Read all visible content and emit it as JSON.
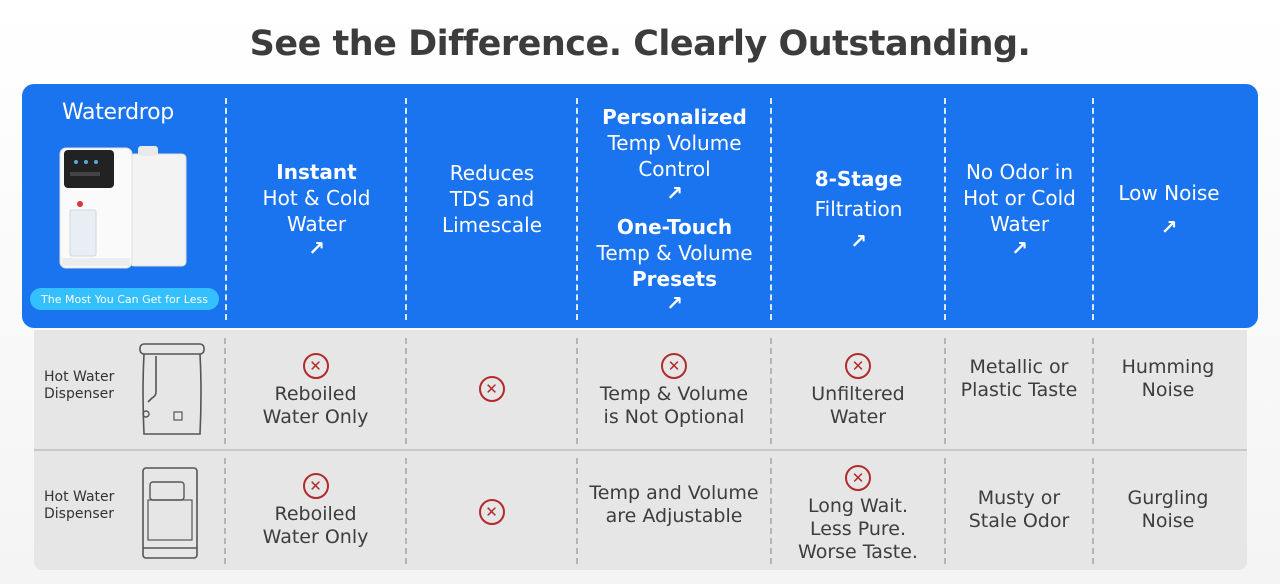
{
  "title": "See the Difference. Clearly Outstanding.",
  "brand": {
    "logo": "Waterdrop",
    "pill": "The Most You Can Get for Less",
    "accent_color": "#1a74f0",
    "pill_color": "#34c0ff",
    "x_color": "#b22b2b"
  },
  "features": [
    {
      "line1_bold": "Instant",
      "line2": "Hot & Cold",
      "line3": "Water"
    },
    {
      "line1": "Reduces",
      "line2": "TDS and",
      "line3": "Limescale"
    },
    {
      "a_bold": "Personalized",
      "a_rest1": "Temp Volume",
      "a_rest2": "Control",
      "b_bold": "One-Touch",
      "b_mid": "Temp & Volume",
      "b_bold2": "Presets"
    },
    {
      "line1_bold": "8-Stage",
      "line2": "Filtration"
    },
    {
      "line1": "No Odor in",
      "line2": "Hot or Cold",
      "line3": "Water"
    },
    {
      "line1": "Low Noise"
    }
  ],
  "arrow_glyph": "↗",
  "rows": [
    {
      "label_line1": "Hot Water",
      "label_line2": "Dispenser",
      "icon": "kettle-dispenser-icon",
      "cells": [
        {
          "x": true,
          "line1": "Reboiled",
          "line2": "Water Only"
        },
        {
          "x": true
        },
        {
          "x": true,
          "line1": "Temp & Volume",
          "line2": "is Not Optional"
        },
        {
          "x": true,
          "line1": "Unfiltered",
          "line2": "Water"
        },
        {
          "line1": "Metallic or",
          "line2": "Plastic Taste"
        },
        {
          "line1": "Humming",
          "line2": "Noise"
        }
      ]
    },
    {
      "label_line1": "Hot Water",
      "label_line2": "Dispenser",
      "icon": "countertop-dispenser-icon",
      "cells": [
        {
          "x": true,
          "line1": "Reboiled",
          "line2": "Water Only"
        },
        {
          "x": true
        },
        {
          "line1": "Temp and Volume",
          "line2": "are Adjustable"
        },
        {
          "x": true,
          "line1": "Long Wait.",
          "line2": "Less Pure.",
          "line3": "Worse Taste."
        },
        {
          "line1": "Musty or",
          "line2": "Stale Odor"
        },
        {
          "line1": "Gurgling",
          "line2": "Noise"
        }
      ]
    }
  ]
}
